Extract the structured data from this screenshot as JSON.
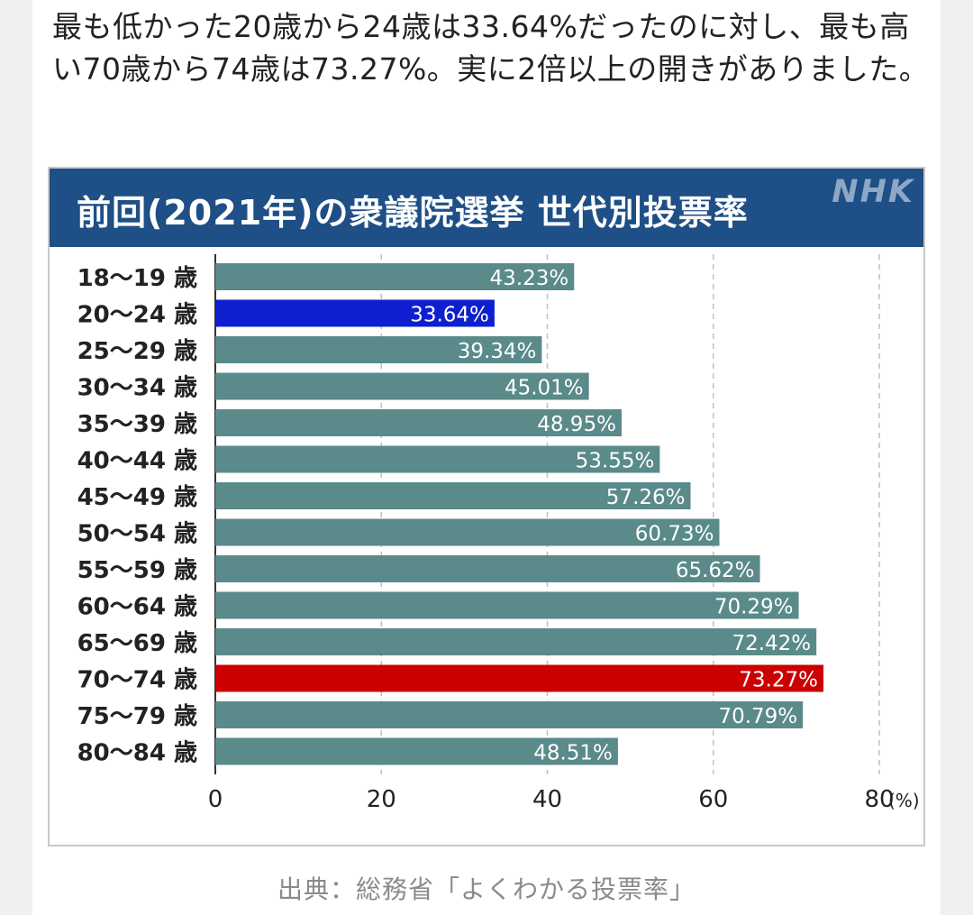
{
  "article": {
    "lead_text": "最も低かった20歳から24歳は33.64%だったのに対し、最も高い70歳から74歳は73.27%。実に2倍以上の開きがありました。",
    "caption": "出典：総務省「よくわかる投票率」"
  },
  "figure": {
    "logo": "NHK"
  },
  "colors": {
    "header": "#1e4f86",
    "bar_default": "#5a8a8a",
    "bar_lowest": "#0e1fd0",
    "bar_highest": "#cc0000"
  },
  "chart_data": {
    "type": "bar",
    "orientation": "horizontal",
    "title": "前回(2021年)の衆議院選挙 世代別投票率",
    "categories": [
      "18〜19 歳",
      "20〜24 歳",
      "25〜29 歳",
      "30〜34 歳",
      "35〜39 歳",
      "40〜44 歳",
      "45〜49 歳",
      "50〜54 歳",
      "55〜59 歳",
      "60〜64 歳",
      "65〜69 歳",
      "70〜74 歳",
      "75〜79 歳",
      "80〜84 歳"
    ],
    "values": [
      43.23,
      33.64,
      39.34,
      45.01,
      48.95,
      53.55,
      57.26,
      60.73,
      65.62,
      70.29,
      72.42,
      73.27,
      70.79,
      48.51
    ],
    "value_labels": [
      "43.23%",
      "33.64%",
      "39.34%",
      "45.01%",
      "48.95%",
      "53.55%",
      "57.26%",
      "60.73%",
      "65.62%",
      "70.29%",
      "72.42%",
      "73.27%",
      "70.79%",
      "48.51%"
    ],
    "highlight": {
      "lowest_index": 1,
      "highest_index": 11
    },
    "x_ticks": [
      "0",
      "20",
      "40",
      "60",
      "80"
    ],
    "x_unit": "(%)",
    "xlim": [
      0,
      80
    ],
    "grid": "vertical dashed",
    "legend": "none"
  }
}
